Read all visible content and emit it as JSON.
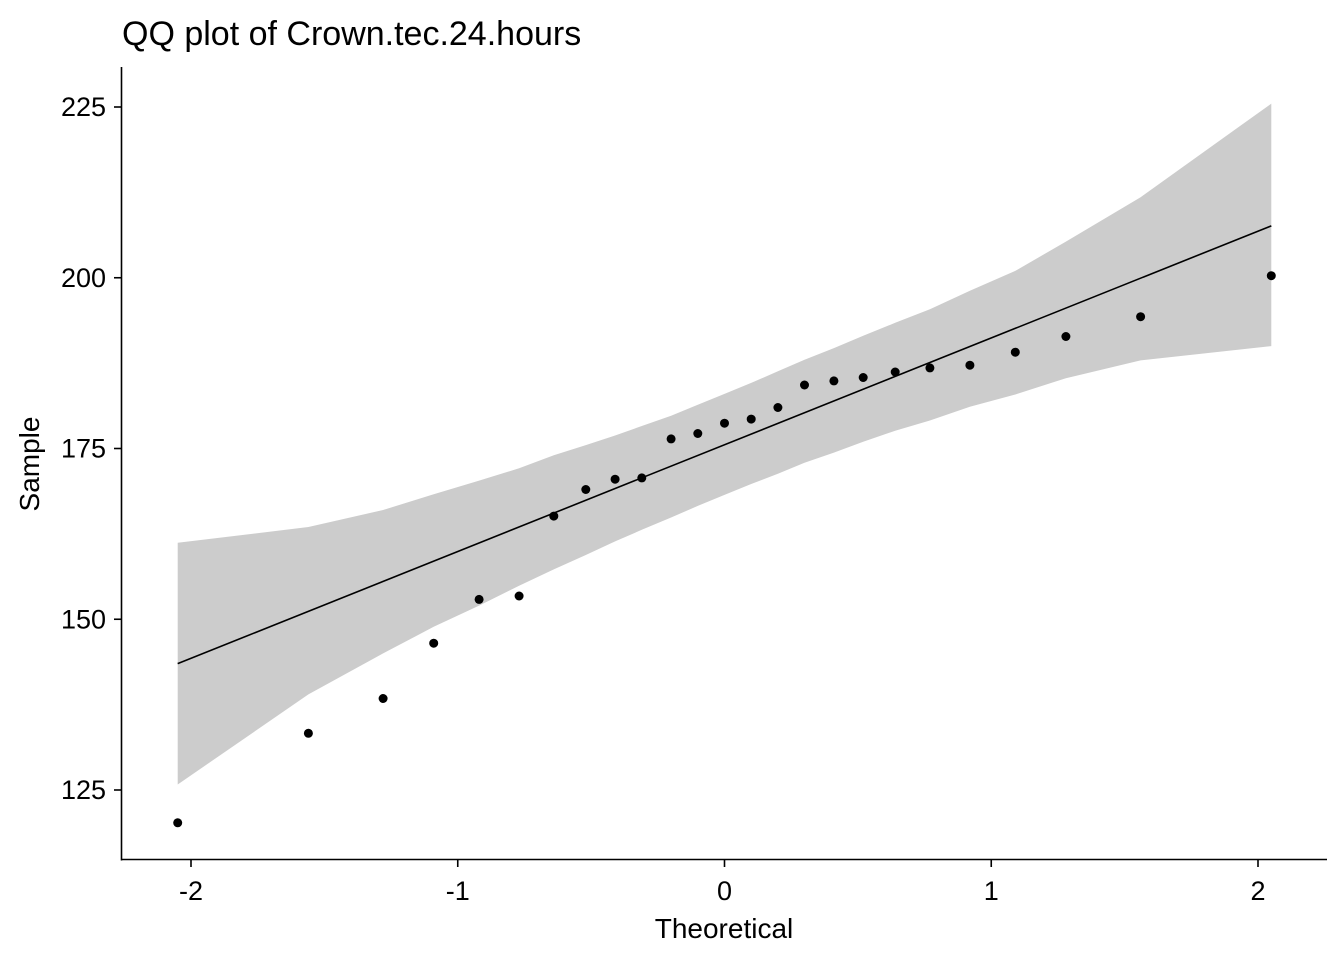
{
  "chart_data": {
    "type": "scatter",
    "title": "QQ plot of Crown.tec.24.hours",
    "xlabel": "Theoretical",
    "ylabel": "Sample",
    "xlim": [
      -2.25,
      2.25
    ],
    "ylim": [
      115,
      231
    ],
    "x_ticks": [
      -2,
      -1,
      0,
      1,
      2
    ],
    "x_tick_labels": [
      "-2",
      "-1",
      "0",
      "1",
      "2"
    ],
    "y_ticks": [
      125,
      150,
      175,
      200,
      225
    ],
    "y_tick_labels": [
      "125",
      "150",
      "175",
      "200",
      "225"
    ],
    "grid": false,
    "legend": "none",
    "colors": {
      "points": "#000000",
      "line": "#000000",
      "band": "#cccccc"
    },
    "points": [
      {
        "x": -2.05,
        "y": 120.2
      },
      {
        "x": -1.56,
        "y": 133.3
      },
      {
        "x": -1.28,
        "y": 138.4
      },
      {
        "x": -1.09,
        "y": 146.5
      },
      {
        "x": -0.92,
        "y": 152.9
      },
      {
        "x": -0.77,
        "y": 153.4
      },
      {
        "x": -0.64,
        "y": 165.1
      },
      {
        "x": -0.52,
        "y": 169.0
      },
      {
        "x": -0.41,
        "y": 170.5
      },
      {
        "x": -0.31,
        "y": 170.7
      },
      {
        "x": -0.2,
        "y": 176.4
      },
      {
        "x": -0.1,
        "y": 177.2
      },
      {
        "x": 0.0,
        "y": 178.7
      },
      {
        "x": 0.1,
        "y": 179.3
      },
      {
        "x": 0.2,
        "y": 181.0
      },
      {
        "x": 0.3,
        "y": 184.3
      },
      {
        "x": 0.41,
        "y": 184.9
      },
      {
        "x": 0.52,
        "y": 185.4
      },
      {
        "x": 0.64,
        "y": 186.2
      },
      {
        "x": 0.77,
        "y": 186.8
      },
      {
        "x": 0.92,
        "y": 187.2
      },
      {
        "x": 1.09,
        "y": 189.1
      },
      {
        "x": 1.28,
        "y": 191.4
      },
      {
        "x": 1.56,
        "y": 194.3
      },
      {
        "x": 2.05,
        "y": 200.3
      }
    ],
    "reference_line": [
      {
        "x": -2.05,
        "y": 143.5
      },
      {
        "x": 2.05,
        "y": 207.6
      }
    ],
    "confidence_band": {
      "upper": [
        {
          "x": -2.05,
          "y": 161.2
        },
        {
          "x": -1.56,
          "y": 163.5
        },
        {
          "x": -1.28,
          "y": 166.0
        },
        {
          "x": -1.09,
          "y": 168.3
        },
        {
          "x": -0.92,
          "y": 170.3
        },
        {
          "x": -0.77,
          "y": 172.1
        },
        {
          "x": -0.64,
          "y": 174.0
        },
        {
          "x": -0.52,
          "y": 175.5
        },
        {
          "x": -0.41,
          "y": 176.9
        },
        {
          "x": -0.31,
          "y": 178.3
        },
        {
          "x": -0.2,
          "y": 179.8
        },
        {
          "x": -0.1,
          "y": 181.4
        },
        {
          "x": 0.0,
          "y": 183.0
        },
        {
          "x": 0.1,
          "y": 184.6
        },
        {
          "x": 0.2,
          "y": 186.3
        },
        {
          "x": 0.3,
          "y": 188.0
        },
        {
          "x": 0.41,
          "y": 189.7
        },
        {
          "x": 0.52,
          "y": 191.5
        },
        {
          "x": 0.64,
          "y": 193.4
        },
        {
          "x": 0.77,
          "y": 195.4
        },
        {
          "x": 0.92,
          "y": 198.1
        },
        {
          "x": 1.09,
          "y": 201.0
        },
        {
          "x": 1.28,
          "y": 205.3
        },
        {
          "x": 1.56,
          "y": 211.8
        },
        {
          "x": 2.05,
          "y": 225.5
        }
      ],
      "lower": [
        {
          "x": -2.05,
          "y": 125.8
        },
        {
          "x": -1.56,
          "y": 139.0
        },
        {
          "x": -1.28,
          "y": 145.0
        },
        {
          "x": -1.09,
          "y": 148.9
        },
        {
          "x": -0.92,
          "y": 152.0
        },
        {
          "x": -0.77,
          "y": 154.9
        },
        {
          "x": -0.64,
          "y": 157.3
        },
        {
          "x": -0.52,
          "y": 159.4
        },
        {
          "x": -0.41,
          "y": 161.4
        },
        {
          "x": -0.31,
          "y": 163.1
        },
        {
          "x": -0.2,
          "y": 164.9
        },
        {
          "x": -0.1,
          "y": 166.6
        },
        {
          "x": 0.0,
          "y": 168.2
        },
        {
          "x": 0.1,
          "y": 169.8
        },
        {
          "x": 0.2,
          "y": 171.3
        },
        {
          "x": 0.3,
          "y": 172.9
        },
        {
          "x": 0.41,
          "y": 174.4
        },
        {
          "x": 0.52,
          "y": 176.0
        },
        {
          "x": 0.64,
          "y": 177.6
        },
        {
          "x": 0.77,
          "y": 179.1
        },
        {
          "x": 0.92,
          "y": 181.1
        },
        {
          "x": 1.09,
          "y": 182.9
        },
        {
          "x": 1.28,
          "y": 185.3
        },
        {
          "x": 1.56,
          "y": 187.9
        },
        {
          "x": 2.05,
          "y": 190.0
        }
      ]
    }
  }
}
